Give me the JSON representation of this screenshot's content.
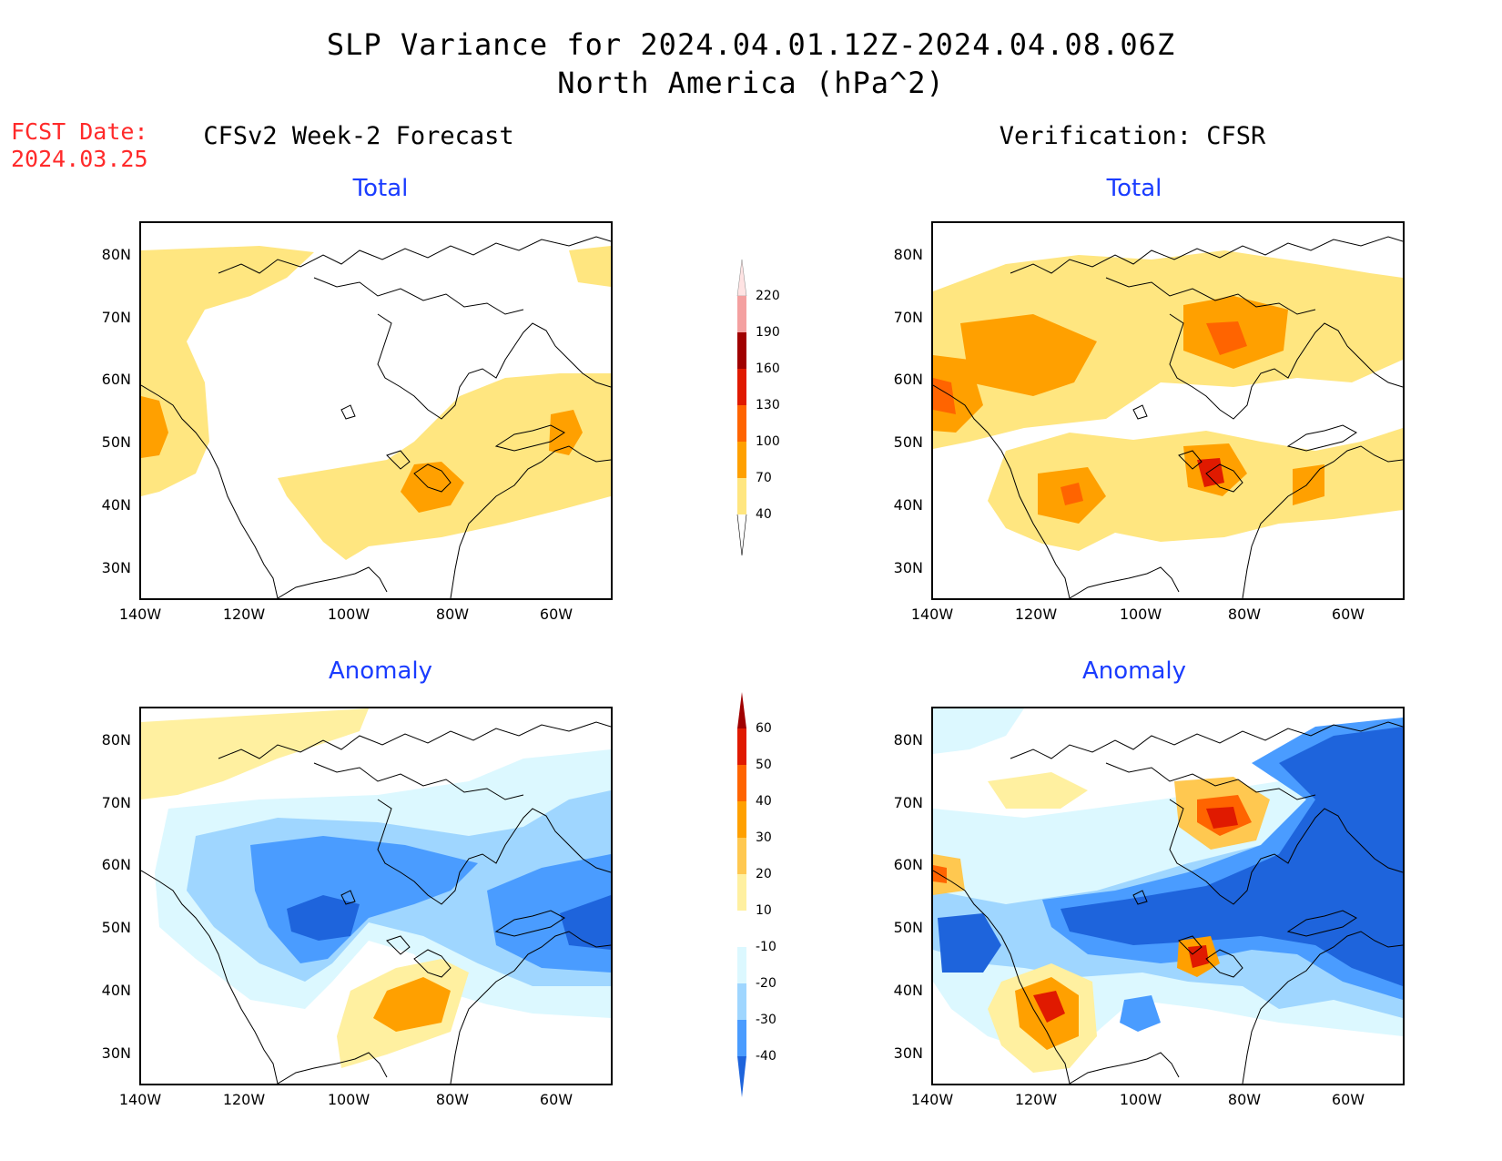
{
  "header": {
    "title_line1": "SLP Variance for 2024.04.01.12Z-2024.04.08.06Z",
    "title_line2": "North America (hPa^2)",
    "fcst_line1": "FCST Date:",
    "fcst_line2": "2024.03.25"
  },
  "columns": {
    "left_title": "CFSv2 Week-2 Forecast",
    "right_title": "Verification: CFSR"
  },
  "panels": {
    "fc_total_title": "Total",
    "fc_anom_title": "Anomaly",
    "ver_total_title": "Total",
    "ver_anom_title": "Anomaly"
  },
  "axes": {
    "lat_labels": [
      "80N",
      "70N",
      "60N",
      "50N",
      "40N",
      "30N"
    ],
    "lon_labels": [
      "140W",
      "120W",
      "100W",
      "80W",
      "60W"
    ]
  },
  "colorbar_total": {
    "levels": [
      "220",
      "190",
      "160",
      "130",
      "100",
      "70",
      "40"
    ],
    "colors": [
      "#ffe3e3",
      "#f4a0a0",
      "#a00000",
      "#e01a00",
      "#ff6400",
      "#ffa000",
      "#ffe680"
    ]
  },
  "colorbar_anom": {
    "levels": [
      "60",
      "50",
      "40",
      "30",
      "20",
      "10",
      "-10",
      "-20",
      "-30",
      "-40"
    ],
    "colors": [
      "#a00000",
      "#e01a00",
      "#ff6400",
      "#ffa000",
      "#ffc850",
      "#fff0a0",
      "#ffffff",
      "#dcf8ff",
      "#9fd6ff",
      "#4a9cff",
      "#1e64dc"
    ]
  }
}
